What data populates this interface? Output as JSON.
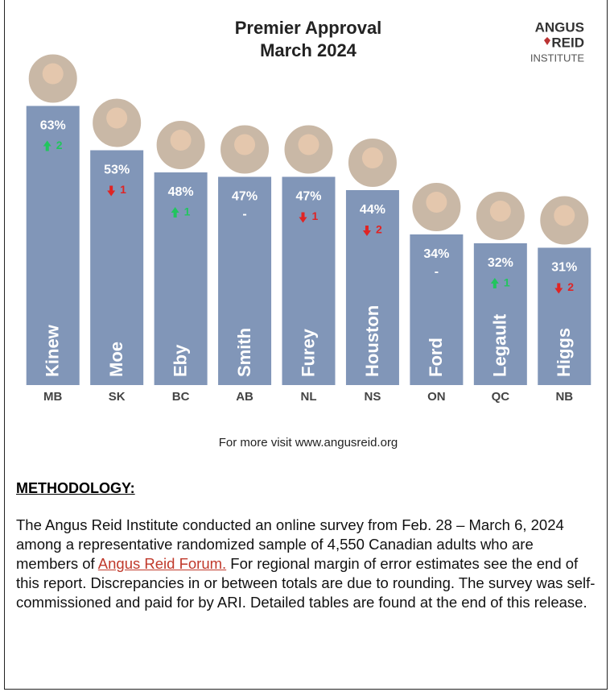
{
  "chart_data": {
    "type": "bar",
    "title": "Premier Approval",
    "subtitle": "March 2024",
    "categories": [
      "MB",
      "SK",
      "BC",
      "AB",
      "NL",
      "NS",
      "ON",
      "QC",
      "NB"
    ],
    "premiers": [
      "Kinew",
      "Moe",
      "Eby",
      "Smith",
      "Furey",
      "Houston",
      "Ford",
      "Legault",
      "Higgs"
    ],
    "values": [
      63,
      53,
      48,
      47,
      47,
      44,
      34,
      32,
      31
    ],
    "value_labels": [
      "63%",
      "53%",
      "48%",
      "47%",
      "47%",
      "44%",
      "34%",
      "32%",
      "31%"
    ],
    "changes": [
      2,
      -1,
      1,
      0,
      -1,
      -2,
      0,
      1,
      -2
    ],
    "change_labels": [
      "2",
      "1",
      "1",
      "-",
      "1",
      "2",
      "-",
      "1",
      "2"
    ],
    "color": "#8196b8",
    "up_color": "#22c55e",
    "down_color": "#e02424",
    "ylim": [
      0,
      70
    ]
  },
  "logo": [
    "ANGUS",
    "REID",
    "INSTITUTE"
  ],
  "footer": "For more visit www.angusreid.org",
  "methodology": {
    "heading": "METHODOLOGY:",
    "text_before": "The Angus Reid Institute conducted an online survey from Feb. 28 – March 6, 2024 among a representative randomized sample of 4,550 Canadian adults who are members of ",
    "link": "Angus Reid Forum.",
    "text_after": " For regional margin of error estimates see the end of this report. Discrepancies in or between totals are due to rounding. The survey was self-commissioned and paid for by ARI. Detailed tables are found at the end of this release."
  }
}
